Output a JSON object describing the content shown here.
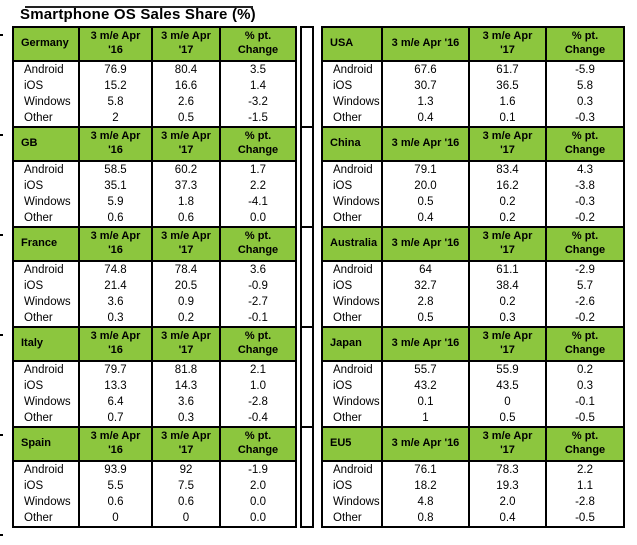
{
  "title": "Smartphone OS Sales Share (%)",
  "colors": {
    "header_green": "#8CC63E",
    "border": "#000000",
    "text": "#000000",
    "background": "#FFFFFF"
  },
  "headers": {
    "left": {
      "c16": "3 m/e Apr\n'16",
      "c17": "3 m/e Apr\n'17",
      "chg": "% pt.\nChange"
    },
    "right": {
      "c16": "3 m/e Apr '16",
      "c17": "3 m/e Apr\n'17",
      "chg": "% pt.\nChange"
    }
  },
  "stacks": {
    "left": [
      {
        "name": "Germany",
        "rows": [
          {
            "os": "Android",
            "v16": "76.9",
            "v17": "80.4",
            "chg": "3.5"
          },
          {
            "os": "iOS",
            "v16": "15.2",
            "v17": "16.6",
            "chg": "1.4"
          },
          {
            "os": "Windows",
            "v16": "5.8",
            "v17": "2.6",
            "chg": "-3.2"
          },
          {
            "os": "Other",
            "v16": "2",
            "v17": "0.5",
            "chg": "-1.5"
          }
        ]
      },
      {
        "name": "GB",
        "rows": [
          {
            "os": "Android",
            "v16": "58.5",
            "v17": "60.2",
            "chg": "1.7"
          },
          {
            "os": "iOS",
            "v16": "35.1",
            "v17": "37.3",
            "chg": "2.2"
          },
          {
            "os": "Windows",
            "v16": "5.9",
            "v17": "1.8",
            "chg": "-4.1"
          },
          {
            "os": "Other",
            "v16": "0.6",
            "v17": "0.6",
            "chg": "0.0"
          }
        ]
      },
      {
        "name": "France",
        "rows": [
          {
            "os": "Android",
            "v16": "74.8",
            "v17": "78.4",
            "chg": "3.6"
          },
          {
            "os": "iOS",
            "v16": "21.4",
            "v17": "20.5",
            "chg": "-0.9"
          },
          {
            "os": "Windows",
            "v16": "3.6",
            "v17": "0.9",
            "chg": "-2.7"
          },
          {
            "os": "Other",
            "v16": "0.3",
            "v17": "0.2",
            "chg": "-0.1"
          }
        ]
      },
      {
        "name": "Italy",
        "rows": [
          {
            "os": "Android",
            "v16": "79.7",
            "v17": "81.8",
            "chg": "2.1"
          },
          {
            "os": "iOS",
            "v16": "13.3",
            "v17": "14.3",
            "chg": "1.0"
          },
          {
            "os": "Windows",
            "v16": "6.4",
            "v17": "3.6",
            "chg": "-2.8"
          },
          {
            "os": "Other",
            "v16": "0.7",
            "v17": "0.3",
            "chg": "-0.4"
          }
        ]
      },
      {
        "name": "Spain",
        "rows": [
          {
            "os": "Android",
            "v16": "93.9",
            "v17": "92",
            "chg": "-1.9"
          },
          {
            "os": "iOS",
            "v16": "5.5",
            "v17": "7.5",
            "chg": "2.0"
          },
          {
            "os": "Windows",
            "v16": "0.6",
            "v17": "0.6",
            "chg": "0.0"
          },
          {
            "os": "Other",
            "v16": "0",
            "v17": "0",
            "chg": "0.0"
          }
        ]
      }
    ],
    "right": [
      {
        "name": "USA",
        "rows": [
          {
            "os": "Android",
            "v16": "67.6",
            "v17": "61.7",
            "chg": "-5.9"
          },
          {
            "os": "iOS",
            "v16": "30.7",
            "v17": "36.5",
            "chg": "5.8"
          },
          {
            "os": "Windows",
            "v16": "1.3",
            "v17": "1.6",
            "chg": "0.3"
          },
          {
            "os": "Other",
            "v16": "0.4",
            "v17": "0.1",
            "chg": "-0.3"
          }
        ]
      },
      {
        "name": "China",
        "rows": [
          {
            "os": "Android",
            "v16": "79.1",
            "v17": "83.4",
            "chg": "4.3"
          },
          {
            "os": "iOS",
            "v16": "20.0",
            "v17": "16.2",
            "chg": "-3.8"
          },
          {
            "os": "Windows",
            "v16": "0.5",
            "v17": "0.2",
            "chg": "-0.3"
          },
          {
            "os": "Other",
            "v16": "0.4",
            "v17": "0.2",
            "chg": "-0.2"
          }
        ]
      },
      {
        "name": "Australia",
        "rows": [
          {
            "os": "Android",
            "v16": "64",
            "v17": "61.1",
            "chg": "-2.9"
          },
          {
            "os": "iOS",
            "v16": "32.7",
            "v17": "38.4",
            "chg": "5.7"
          },
          {
            "os": "Windows",
            "v16": "2.8",
            "v17": "0.2",
            "chg": "-2.6"
          },
          {
            "os": "Other",
            "v16": "0.5",
            "v17": "0.3",
            "chg": "-0.2"
          }
        ]
      },
      {
        "name": "Japan",
        "rows": [
          {
            "os": "Android",
            "v16": "55.7",
            "v17": "55.9",
            "chg": "0.2"
          },
          {
            "os": "iOS",
            "v16": "43.2",
            "v17": "43.5",
            "chg": "0.3"
          },
          {
            "os": "Windows",
            "v16": "0.1",
            "v17": "0",
            "chg": "-0.1"
          },
          {
            "os": "Other",
            "v16": "1",
            "v17": "0.5",
            "chg": "-0.5"
          }
        ]
      },
      {
        "name": "EU5",
        "rows": [
          {
            "os": "Android",
            "v16": "76.1",
            "v17": "78.3",
            "chg": "2.2"
          },
          {
            "os": "iOS",
            "v16": "18.2",
            "v17": "19.3",
            "chg": "1.1"
          },
          {
            "os": "Windows",
            "v16": "4.8",
            "v17": "2.0",
            "chg": "-2.8"
          },
          {
            "os": "Other",
            "v16": "0.8",
            "v17": "0.4",
            "chg": "-0.5"
          }
        ]
      }
    ]
  },
  "chart_data": [
    {
      "type": "table",
      "title": "Germany",
      "columns": [
        "OS",
        "3 m/e Apr '16",
        "3 m/e Apr '17",
        "% pt. Change"
      ],
      "rows": [
        [
          "Android",
          76.9,
          80.4,
          3.5
        ],
        [
          "iOS",
          15.2,
          16.6,
          1.4
        ],
        [
          "Windows",
          5.8,
          2.6,
          -3.2
        ],
        [
          "Other",
          2,
          0.5,
          -1.5
        ]
      ]
    },
    {
      "type": "table",
      "title": "GB",
      "columns": [
        "OS",
        "3 m/e Apr '16",
        "3 m/e Apr '17",
        "% pt. Change"
      ],
      "rows": [
        [
          "Android",
          58.5,
          60.2,
          1.7
        ],
        [
          "iOS",
          35.1,
          37.3,
          2.2
        ],
        [
          "Windows",
          5.9,
          1.8,
          -4.1
        ],
        [
          "Other",
          0.6,
          0.6,
          0.0
        ]
      ]
    },
    {
      "type": "table",
      "title": "France",
      "columns": [
        "OS",
        "3 m/e Apr '16",
        "3 m/e Apr '17",
        "% pt. Change"
      ],
      "rows": [
        [
          "Android",
          74.8,
          78.4,
          3.6
        ],
        [
          "iOS",
          21.4,
          20.5,
          -0.9
        ],
        [
          "Windows",
          3.6,
          0.9,
          -2.7
        ],
        [
          "Other",
          0.3,
          0.2,
          -0.1
        ]
      ]
    },
    {
      "type": "table",
      "title": "Italy",
      "columns": [
        "OS",
        "3 m/e Apr '16",
        "3 m/e Apr '17",
        "% pt. Change"
      ],
      "rows": [
        [
          "Android",
          79.7,
          81.8,
          2.1
        ],
        [
          "iOS",
          13.3,
          14.3,
          1.0
        ],
        [
          "Windows",
          6.4,
          3.6,
          -2.8
        ],
        [
          "Other",
          0.7,
          0.3,
          -0.4
        ]
      ]
    },
    {
      "type": "table",
      "title": "Spain",
      "columns": [
        "OS",
        "3 m/e Apr '16",
        "3 m/e Apr '17",
        "% pt. Change"
      ],
      "rows": [
        [
          "Android",
          93.9,
          92,
          -1.9
        ],
        [
          "iOS",
          5.5,
          7.5,
          2.0
        ],
        [
          "Windows",
          0.6,
          0.6,
          0.0
        ],
        [
          "Other",
          0,
          0,
          0.0
        ]
      ]
    },
    {
      "type": "table",
      "title": "USA",
      "columns": [
        "OS",
        "3 m/e Apr '16",
        "3 m/e Apr '17",
        "% pt. Change"
      ],
      "rows": [
        [
          "Android",
          67.6,
          61.7,
          -5.9
        ],
        [
          "iOS",
          30.7,
          36.5,
          5.8
        ],
        [
          "Windows",
          1.3,
          1.6,
          0.3
        ],
        [
          "Other",
          0.4,
          0.1,
          -0.3
        ]
      ]
    },
    {
      "type": "table",
      "title": "China",
      "columns": [
        "OS",
        "3 m/e Apr '16",
        "3 m/e Apr '17",
        "% pt. Change"
      ],
      "rows": [
        [
          "Android",
          79.1,
          83.4,
          4.3
        ],
        [
          "iOS",
          20.0,
          16.2,
          -3.8
        ],
        [
          "Windows",
          0.5,
          0.2,
          -0.3
        ],
        [
          "Other",
          0.4,
          0.2,
          -0.2
        ]
      ]
    },
    {
      "type": "table",
      "title": "Australia",
      "columns": [
        "OS",
        "3 m/e Apr '16",
        "3 m/e Apr '17",
        "% pt. Change"
      ],
      "rows": [
        [
          "Android",
          64,
          61.1,
          -2.9
        ],
        [
          "iOS",
          32.7,
          38.4,
          5.7
        ],
        [
          "Windows",
          2.8,
          0.2,
          -2.6
        ],
        [
          "Other",
          0.5,
          0.3,
          -0.2
        ]
      ]
    },
    {
      "type": "table",
      "title": "Japan",
      "columns": [
        "OS",
        "3 m/e Apr '16",
        "3 m/e Apr '17",
        "% pt. Change"
      ],
      "rows": [
        [
          "Android",
          55.7,
          55.9,
          0.2
        ],
        [
          "iOS",
          43.2,
          43.5,
          0.3
        ],
        [
          "Windows",
          0.1,
          0,
          -0.1
        ],
        [
          "Other",
          1,
          0.5,
          -0.5
        ]
      ]
    },
    {
      "type": "table",
      "title": "EU5",
      "columns": [
        "OS",
        "3 m/e Apr '16",
        "3 m/e Apr '17",
        "% pt. Change"
      ],
      "rows": [
        [
          "Android",
          76.1,
          78.3,
          2.2
        ],
        [
          "iOS",
          18.2,
          19.3,
          1.1
        ],
        [
          "Windows",
          4.8,
          2.0,
          -2.8
        ],
        [
          "Other",
          0.8,
          0.4,
          -0.5
        ]
      ]
    }
  ]
}
